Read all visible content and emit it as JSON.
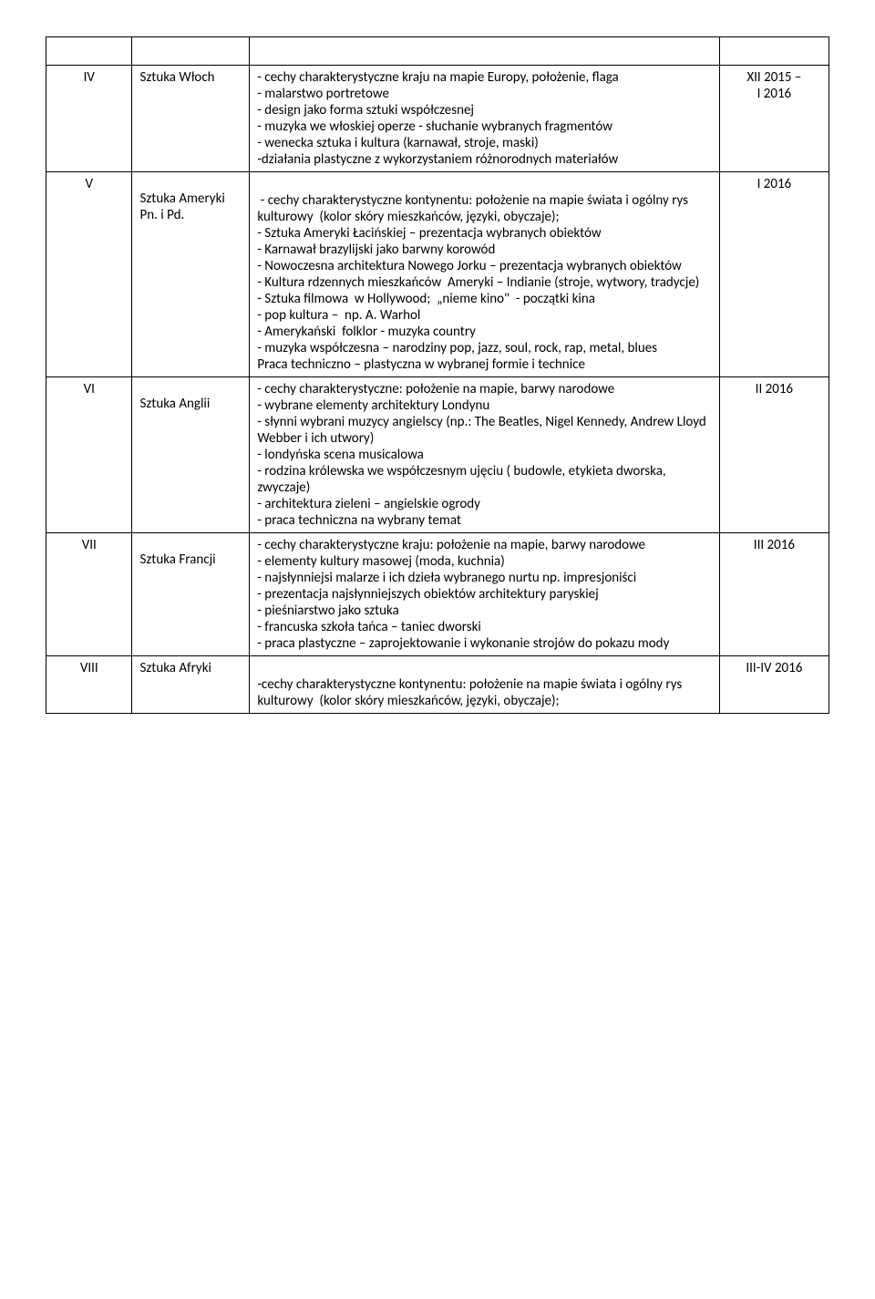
{
  "rows": [
    {
      "num": "",
      "subject": "",
      "desc": "",
      "date": "",
      "isHeader": true
    },
    {
      "num": "IV",
      "subject": "Sztuka Włoch",
      "desc": "- cechy charakterystyczne kraju na mapie Europy, położenie, flaga\n- malarstwo portretowe\n- design jako forma sztuki współczesnej\n- muzyka we włoskiej operze - słuchanie wybranych fragmentów\n- wenecka sztuka i kultura (karnawał, stroje, maski)\n-działania plastyczne z wykorzystaniem różnorodnych materiałów\n",
      "date": "XII 2015 –\nI 2016"
    },
    {
      "num": "V",
      "subject": "Sztuka Ameryki Pn. i Pd.",
      "desc": "\n - cechy charakterystyczne kontynentu: położenie na mapie świata i ogólny rys kulturowy  (kolor skóry mieszkańców, języki, obyczaje);\n- Sztuka Ameryki Łacińskiej – prezentacja wybranych obiektów\n- Karnawał brazylijski jako barwny korowód\n- Nowoczesna architektura Nowego Jorku – prezentacja wybranych obiektów\n- Kultura rdzennych mieszkańców  Ameryki – Indianie (stroje, wytwory, tradycje)\n- Sztuka filmowa  w Hollywood;  „nieme kino\"  - początki kina\n- pop kultura –  np. A. Warhol\n- Amerykański  folklor - muzyka country\n- muzyka współczesna – narodziny pop, jazz, soul, rock, rap, metal, blues\nPraca techniczno – plastyczna w wybranej formie i technice\n",
      "date": "I 2016",
      "subjectPad": true
    },
    {
      "num": "VI",
      "subject": "Sztuka Anglii",
      "desc": "- cechy charakterystyczne: położenie na mapie, barwy narodowe\n- wybrane elementy architektury Londynu\n- słynni wybrani muzycy angielscy (np.: The Beatles, Nigel Kennedy, Andrew Lloyd Webber i ich utwory)\n- londyńska scena musicalowa\n- rodzina królewska we współczesnym ujęciu ( budowle, etykieta dworska, zwyczaje)\n- architektura zieleni – angielskie ogrody\n- praca techniczna na wybrany temat\n",
      "date": "II 2016",
      "subjectPad": true
    },
    {
      "num": "VII",
      "subject": "Sztuka Francji",
      "desc": "- cechy charakterystyczne kraju: położenie na mapie, barwy narodowe\n- elementy kultury masowej (moda, kuchnia)\n- najsłynniejsi malarze i ich dzieła wybranego nurtu np. impresjoniści\n- prezentacja najsłynniejszych obiektów architektury paryskiej\n- pieśniarstwo jako sztuka\n- francuska szkoła tańca – taniec dworski\n- praca plastyczne – zaprojektowanie i wykonanie strojów do pokazu mody\n",
      "date": "III 2016",
      "subjectPad": true
    },
    {
      "num": "VIII",
      "subject": "Sztuka Afryki",
      "desc": "\n-cechy charakterystyczne kontynentu: położenie na mapie świata i ogólny rys kulturowy  (kolor skóry mieszkańców, języki, obyczaje);",
      "date": "III-IV 2016"
    }
  ]
}
